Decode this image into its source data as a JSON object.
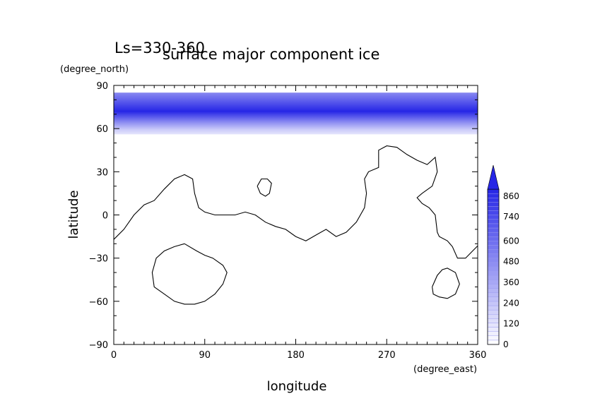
{
  "chart_data": {
    "type": "heatmap",
    "season_label": "Ls=330-360",
    "title": "surface major component ice",
    "xlabel": "longitude",
    "ylabel": "latitude",
    "x_units": "(degree_east)",
    "y_units": "(degree_north)",
    "xlim": [
      0,
      360
    ],
    "ylim": [
      -90,
      90
    ],
    "x_ticks": [
      0,
      90,
      180,
      270,
      360
    ],
    "y_ticks": [
      90,
      60,
      30,
      0,
      -30,
      -60,
      -90
    ],
    "colorbar": {
      "tick_labels": [
        0,
        120,
        240,
        360,
        480,
        600,
        740,
        860
      ],
      "levels": [
        0,
        20,
        40,
        60,
        80,
        100,
        120,
        140,
        160,
        180,
        200,
        220,
        240,
        260,
        280,
        300,
        320,
        340,
        360,
        380,
        400,
        420,
        440,
        460,
        480,
        500,
        540,
        560,
        600,
        640,
        680,
        720,
        740,
        780,
        820,
        860,
        900
      ],
      "low_color": "#ffffff",
      "high_color": "#2626e6",
      "extends": "max"
    },
    "ice_cap": {
      "lat_south_edge": 56,
      "lat_north_edge": 85,
      "max_value_lat": 72,
      "max_value": 900
    },
    "coastlines": [
      [
        [
          0,
          -17
        ],
        [
          10,
          -10
        ],
        [
          20,
          0
        ],
        [
          30,
          7
        ],
        [
          40,
          10
        ],
        [
          50,
          18
        ],
        [
          60,
          25
        ],
        [
          70,
          28
        ],
        [
          78,
          25
        ],
        [
          80,
          15
        ],
        [
          84,
          5
        ],
        [
          90,
          2
        ],
        [
          100,
          0
        ],
        [
          110,
          0
        ],
        [
          120,
          0
        ],
        [
          130,
          2
        ],
        [
          140,
          0
        ],
        [
          150,
          -5
        ],
        [
          160,
          -8
        ],
        [
          170,
          -10
        ],
        [
          180,
          -15
        ],
        [
          190,
          -18
        ],
        [
          200,
          -14
        ],
        [
          210,
          -10
        ],
        [
          220,
          -15
        ],
        [
          230,
          -12
        ],
        [
          240,
          -5
        ],
        [
          248,
          5
        ],
        [
          250,
          15
        ],
        [
          248,
          25
        ],
        [
          252,
          30
        ],
        [
          262,
          33
        ],
        [
          262,
          45
        ],
        [
          270,
          48
        ],
        [
          280,
          47
        ],
        [
          290,
          42
        ],
        [
          300,
          38
        ],
        [
          310,
          35
        ],
        [
          318,
          40
        ],
        [
          320,
          30
        ],
        [
          315,
          20
        ],
        [
          305,
          15
        ],
        [
          300,
          12
        ],
        [
          305,
          8
        ],
        [
          312,
          5
        ],
        [
          318,
          0
        ],
        [
          320,
          -12
        ],
        [
          322,
          -15
        ],
        [
          330,
          -18
        ],
        [
          335,
          -22
        ],
        [
          340,
          -30
        ],
        [
          348,
          -30
        ],
        [
          355,
          -25
        ],
        [
          362,
          -20
        ]
      ],
      [
        [
          142,
          20
        ],
        [
          146,
          25
        ],
        [
          152,
          25
        ],
        [
          156,
          22
        ],
        [
          154,
          15
        ],
        [
          150,
          13
        ],
        [
          145,
          15
        ],
        [
          142,
          20
        ]
      ],
      [
        [
          70,
          -20
        ],
        [
          82,
          -25
        ],
        [
          90,
          -28
        ],
        [
          98,
          -30
        ],
        [
          108,
          -35
        ],
        [
          112,
          -40
        ],
        [
          108,
          -48
        ],
        [
          100,
          -55
        ],
        [
          90,
          -60
        ],
        [
          80,
          -62
        ],
        [
          70,
          -62
        ],
        [
          60,
          -60
        ],
        [
          50,
          -55
        ],
        [
          40,
          -50
        ],
        [
          38,
          -40
        ],
        [
          42,
          -30
        ],
        [
          50,
          -25
        ],
        [
          60,
          -22
        ],
        [
          70,
          -20
        ]
      ],
      [
        [
          315,
          -50
        ],
        [
          320,
          -42
        ],
        [
          325,
          -38
        ],
        [
          330,
          -37
        ],
        [
          338,
          -40
        ],
        [
          342,
          -48
        ],
        [
          338,
          -55
        ],
        [
          330,
          -58
        ],
        [
          322,
          -57
        ],
        [
          316,
          -55
        ],
        [
          315,
          -50
        ]
      ]
    ]
  }
}
